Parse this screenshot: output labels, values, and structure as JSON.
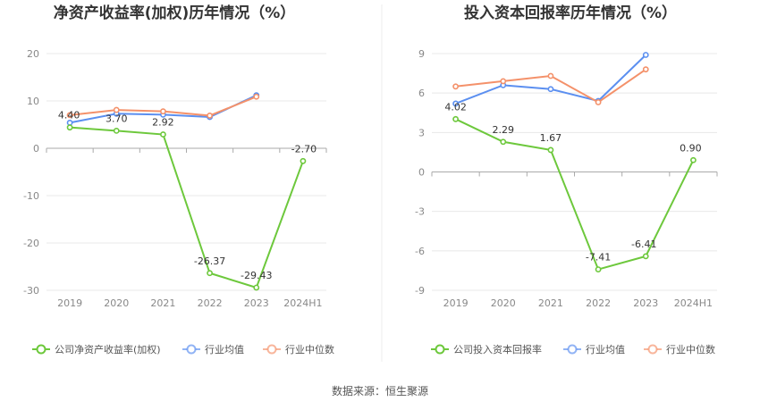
{
  "source_text": "数据来源：恒生聚源",
  "chart_data": [
    {
      "type": "line",
      "title": "净资产收益率(加权)历年情况（%）",
      "categories": [
        "2019",
        "2020",
        "2021",
        "2022",
        "2023",
        "2024H1"
      ],
      "yticks": [
        "20",
        "10",
        "0",
        "-10",
        "-20",
        "-30"
      ],
      "ylim": [
        -30,
        20
      ],
      "grid": true,
      "legend_position": "bottom-left",
      "series": [
        {
          "name": "公司净资产收益率(加权)",
          "color": "#6dc83c",
          "values": [
            4.4,
            3.7,
            2.92,
            -26.37,
            -29.43,
            -2.7
          ],
          "labels": [
            "4.40",
            "3.70",
            "2.92",
            "-26.37",
            "-29.43",
            "-2.70"
          ]
        },
        {
          "name": "行业均值",
          "color": "#5b8ff0",
          "values": [
            5.4,
            7.3,
            7.1,
            6.6,
            11.2,
            null
          ]
        },
        {
          "name": "行业中位数",
          "color": "#f4916a",
          "values": [
            7.0,
            8.1,
            7.8,
            6.9,
            10.9,
            null
          ]
        }
      ]
    },
    {
      "type": "line",
      "title": "投入资本回报率历年情况（%）",
      "categories": [
        "2019",
        "2020",
        "2021",
        "2022",
        "2023",
        "2024H1"
      ],
      "yticks": [
        "9",
        "6",
        "3",
        "0",
        "-3",
        "-6",
        "-9"
      ],
      "ylim": [
        -9,
        9
      ],
      "grid": true,
      "legend_position": "bottom-left",
      "series": [
        {
          "name": "公司投入资本回报率",
          "color": "#6dc83c",
          "values": [
            4.02,
            2.29,
            1.67,
            -7.41,
            -6.41,
            0.9
          ],
          "labels": [
            "4.02",
            "2.29",
            "1.67",
            "-7.41",
            "-6.41",
            "0.90"
          ]
        },
        {
          "name": "行业均值",
          "color": "#5b8ff0",
          "values": [
            5.2,
            6.6,
            6.3,
            5.4,
            8.9,
            null
          ]
        },
        {
          "name": "行业中位数",
          "color": "#f4916a",
          "values": [
            6.5,
            6.9,
            7.3,
            5.3,
            7.8,
            null
          ]
        }
      ]
    }
  ]
}
